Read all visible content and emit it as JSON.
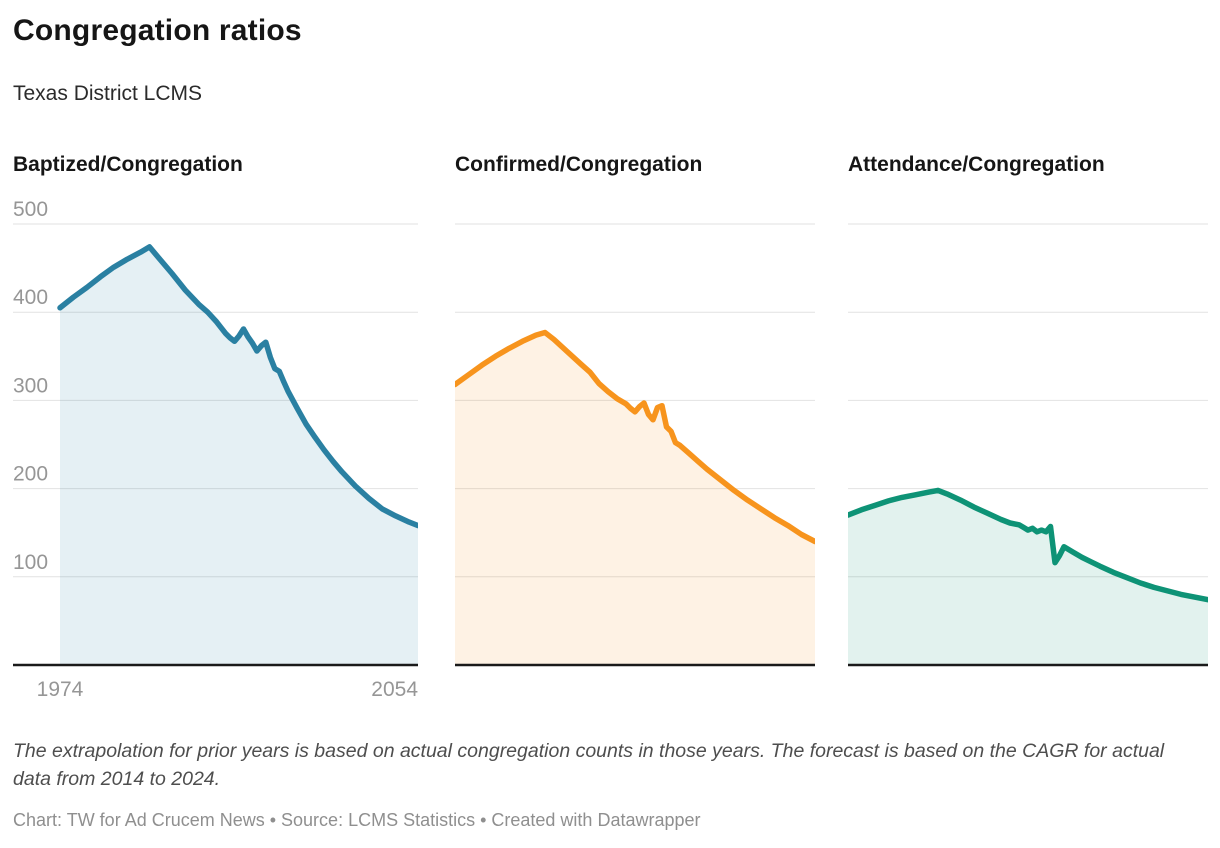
{
  "header": {
    "title": "Congregation ratios",
    "subtitle": "Texas District LCMS"
  },
  "axis": {
    "xlim": [
      1974,
      2054
    ],
    "ylim": [
      0,
      500
    ],
    "x_tick_labels": [
      "1974",
      "2054"
    ],
    "y_ticks": [
      {
        "v": 100,
        "label": "100"
      },
      {
        "v": 200,
        "label": "200"
      },
      {
        "v": 300,
        "label": "300"
      },
      {
        "v": 400,
        "label": "400"
      },
      {
        "v": 500,
        "label": "500"
      }
    ],
    "grid": "horizontal-only",
    "tick_color": "#969696",
    "grid_color": "#e2e2e2",
    "baseline_color": "#1a1a1a"
  },
  "chart_data": [
    {
      "type": "area",
      "title": "Baptized/Congregation",
      "line_color": "#2a80a2",
      "fill_opacity": 0.12,
      "points": [
        [
          1974,
          405
        ],
        [
          1977,
          417
        ],
        [
          1980,
          428
        ],
        [
          1983,
          440
        ],
        [
          1986,
          451
        ],
        [
          1989,
          460
        ],
        [
          1992,
          468
        ],
        [
          1994,
          474
        ],
        [
          1996,
          462
        ],
        [
          1999,
          444
        ],
        [
          2002,
          425
        ],
        [
          2005,
          409
        ],
        [
          2007,
          400
        ],
        [
          2009,
          389
        ],
        [
          2011,
          376
        ],
        [
          2012,
          371
        ],
        [
          2013,
          367
        ],
        [
          2014,
          373
        ],
        [
          2015,
          381
        ],
        [
          2016,
          372
        ],
        [
          2017,
          365
        ],
        [
          2018,
          356
        ],
        [
          2019,
          362
        ],
        [
          2020,
          366
        ],
        [
          2021,
          349
        ],
        [
          2022,
          336
        ],
        [
          2023,
          333
        ],
        [
          2024,
          321
        ],
        [
          2025,
          310
        ],
        [
          2027,
          291
        ],
        [
          2029,
          273
        ],
        [
          2031,
          258
        ],
        [
          2033,
          244
        ],
        [
          2035,
          231
        ],
        [
          2037,
          219
        ],
        [
          2040,
          203
        ],
        [
          2043,
          189
        ],
        [
          2046,
          177
        ],
        [
          2049,
          169
        ],
        [
          2052,
          162
        ],
        [
          2054,
          158
        ]
      ]
    },
    {
      "type": "area",
      "title": "Confirmed/Congregation",
      "line_color": "#f7941d",
      "fill_opacity": 0.12,
      "points": [
        [
          1974,
          318
        ],
        [
          1977,
          329
        ],
        [
          1980,
          340
        ],
        [
          1983,
          350
        ],
        [
          1986,
          359
        ],
        [
          1989,
          367
        ],
        [
          1992,
          374
        ],
        [
          1994,
          377
        ],
        [
          1996,
          369
        ],
        [
          1999,
          355
        ],
        [
          2002,
          341
        ],
        [
          2004,
          332
        ],
        [
          2006,
          319
        ],
        [
          2008,
          310
        ],
        [
          2010,
          302
        ],
        [
          2012,
          296
        ],
        [
          2013,
          291
        ],
        [
          2014,
          287
        ],
        [
          2015,
          293
        ],
        [
          2016,
          297
        ],
        [
          2017,
          284
        ],
        [
          2018,
          278
        ],
        [
          2019,
          292
        ],
        [
          2020,
          294
        ],
        [
          2021,
          270
        ],
        [
          2022,
          265
        ],
        [
          2023,
          252
        ],
        [
          2024,
          249
        ],
        [
          2026,
          240
        ],
        [
          2028,
          231
        ],
        [
          2030,
          222
        ],
        [
          2033,
          210
        ],
        [
          2036,
          198
        ],
        [
          2039,
          187
        ],
        [
          2042,
          177
        ],
        [
          2045,
          167
        ],
        [
          2048,
          158
        ],
        [
          2051,
          148
        ],
        [
          2054,
          140
        ]
      ]
    },
    {
      "type": "area",
      "title": "Attendance/Congregation",
      "line_color": "#0e9376",
      "fill_opacity": 0.12,
      "points": [
        [
          1974,
          170
        ],
        [
          1977,
          176
        ],
        [
          1980,
          181
        ],
        [
          1983,
          186
        ],
        [
          1986,
          190
        ],
        [
          1989,
          193
        ],
        [
          1992,
          196
        ],
        [
          1994,
          198
        ],
        [
          1996,
          194
        ],
        [
          1999,
          187
        ],
        [
          2002,
          179
        ],
        [
          2005,
          172
        ],
        [
          2008,
          165
        ],
        [
          2010,
          161
        ],
        [
          2012,
          159
        ],
        [
          2013,
          156
        ],
        [
          2014,
          153
        ],
        [
          2015,
          155
        ],
        [
          2016,
          151
        ],
        [
          2017,
          153
        ],
        [
          2018,
          151
        ],
        [
          2019,
          157
        ],
        [
          2020,
          116
        ],
        [
          2021,
          124
        ],
        [
          2022,
          134
        ],
        [
          2024,
          128
        ],
        [
          2026,
          122
        ],
        [
          2028,
          117
        ],
        [
          2030,
          112
        ],
        [
          2033,
          105
        ],
        [
          2036,
          99
        ],
        [
          2039,
          93
        ],
        [
          2042,
          88
        ],
        [
          2045,
          84
        ],
        [
          2048,
          80
        ],
        [
          2051,
          77
        ],
        [
          2054,
          74
        ]
      ]
    }
  ],
  "footer": {
    "note": "The extrapolation for prior years is based on actual congregation counts in those years. The forecast is based on the CAGR for actual data from 2014 to 2024.",
    "byline": "Chart: TW for Ad Crucem News • Source: LCMS Statistics • Created with Datawrapper"
  }
}
